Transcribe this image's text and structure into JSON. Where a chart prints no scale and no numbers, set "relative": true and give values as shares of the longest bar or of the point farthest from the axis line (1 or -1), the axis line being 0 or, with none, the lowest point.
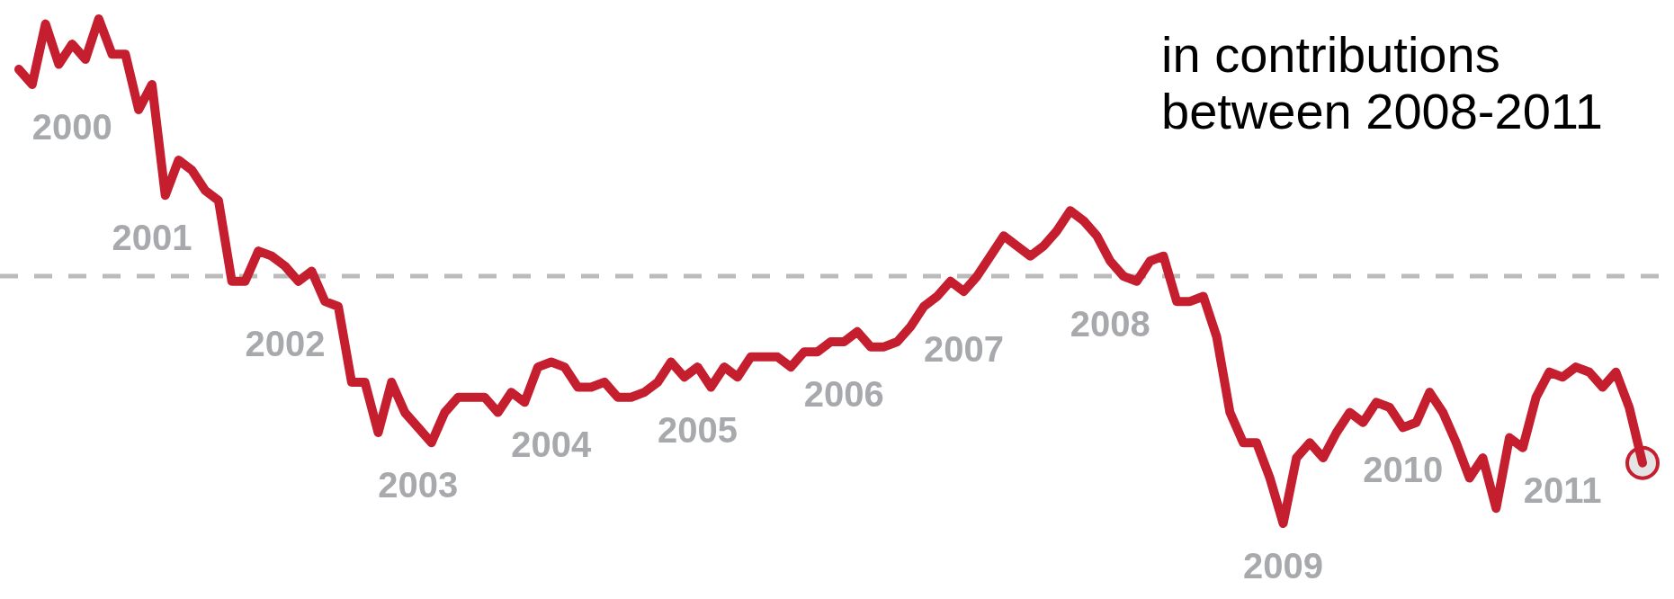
{
  "chart_data": {
    "type": "line",
    "relative": true,
    "categories": [
      null,
      null,
      null,
      null,
      "2000",
      null,
      null,
      null,
      null,
      null,
      "2001",
      null,
      null,
      null,
      null,
      null,
      null,
      null,
      null,
      null,
      "2002",
      null,
      null,
      null,
      null,
      null,
      null,
      null,
      null,
      null,
      "2003",
      null,
      null,
      null,
      null,
      null,
      null,
      null,
      null,
      null,
      "2004",
      null,
      null,
      null,
      null,
      null,
      null,
      null,
      null,
      null,
      null,
      "2005",
      null,
      null,
      null,
      null,
      null,
      null,
      null,
      null,
      null,
      null,
      "2006",
      null,
      null,
      null,
      null,
      null,
      null,
      null,
      null,
      "2007",
      null,
      null,
      null,
      null,
      null,
      null,
      null,
      null,
      null,
      null,
      "2008",
      null,
      null,
      null,
      null,
      null,
      null,
      null,
      null,
      null,
      null,
      null,
      null,
      "2009",
      null,
      null,
      null,
      null,
      null,
      null,
      null,
      null,
      "2010",
      null,
      null,
      null,
      null,
      null,
      null,
      null,
      null,
      null,
      null,
      null,
      "2011",
      null,
      null,
      null,
      null,
      null,
      null
    ],
    "series": [
      {
        "color": "#c41e2f",
        "marker": "none",
        "line_style": "solid",
        "values": [
          0.9,
          0.87,
          0.99,
          0.91,
          0.95,
          0.92,
          1.0,
          0.93,
          0.93,
          0.82,
          0.87,
          0.65,
          0.72,
          0.7,
          0.66,
          0.64,
          0.48,
          0.48,
          0.54,
          0.53,
          0.51,
          0.48,
          0.5,
          0.44,
          0.43,
          0.28,
          0.28,
          0.18,
          0.28,
          0.22,
          0.19,
          0.16,
          0.22,
          0.25,
          0.25,
          0.25,
          0.22,
          0.26,
          0.24,
          0.31,
          0.32,
          0.31,
          0.27,
          0.27,
          0.28,
          0.25,
          0.25,
          0.26,
          0.28,
          0.32,
          0.29,
          0.31,
          0.27,
          0.31,
          0.29,
          0.33,
          0.33,
          0.33,
          0.31,
          0.34,
          0.34,
          0.36,
          0.36,
          0.38,
          0.35,
          0.35,
          0.36,
          0.39,
          0.43,
          0.45,
          0.48,
          0.46,
          0.49,
          0.53,
          0.57,
          0.55,
          0.53,
          0.55,
          0.58,
          0.62,
          0.6,
          0.57,
          0.52,
          0.49,
          0.48,
          0.52,
          0.53,
          0.44,
          0.44,
          0.45,
          0.37,
          0.22,
          0.16,
          0.16,
          0.09,
          0,
          0.13,
          0.16,
          0.13,
          0.18,
          0.22,
          0.2,
          0.24,
          0.23,
          0.19,
          0.2,
          0.26,
          0.22,
          0.16,
          0.09,
          0.13,
          0.03,
          0.17,
          0.15,
          0.25,
          0.3,
          0.29,
          0.31,
          0.3,
          0.27,
          0.3,
          0.23,
          0.12
        ]
      },
      {
        "color": "#c41e2f",
        "marker": "circle",
        "values": [
          null,
          null,
          null,
          null,
          null,
          null,
          null,
          null,
          null,
          null,
          null,
          null,
          null,
          null,
          null,
          null,
          null,
          null,
          null,
          null,
          null,
          null,
          null,
          null,
          null,
          null,
          null,
          null,
          null,
          null,
          null,
          null,
          null,
          null,
          null,
          null,
          null,
          null,
          null,
          null,
          null,
          null,
          null,
          null,
          null,
          null,
          null,
          null,
          null,
          null,
          null,
          null,
          null,
          null,
          null,
          null,
          null,
          null,
          null,
          null,
          null,
          null,
          null,
          null,
          null,
          null,
          null,
          null,
          null,
          null,
          null,
          null,
          null,
          null,
          null,
          null,
          null,
          null,
          null,
          null,
          null,
          null,
          null,
          null,
          null,
          null,
          null,
          null,
          null,
          null,
          null,
          null,
          null,
          null,
          null,
          null,
          null,
          null,
          null,
          null,
          null,
          null,
          null,
          null,
          null,
          null,
          null,
          null,
          null,
          null,
          null,
          null,
          null,
          null,
          null,
          null,
          null,
          null,
          null,
          null,
          null,
          null,
          0.12
        ]
      }
    ],
    "ref_lines": [
      {
        "axis": "y",
        "value": 0.49,
        "color": "#bbbbbb",
        "line_style": "dashed"
      }
    ],
    "annotations": [
      "in contributions between 2008-2011"
    ]
  }
}
